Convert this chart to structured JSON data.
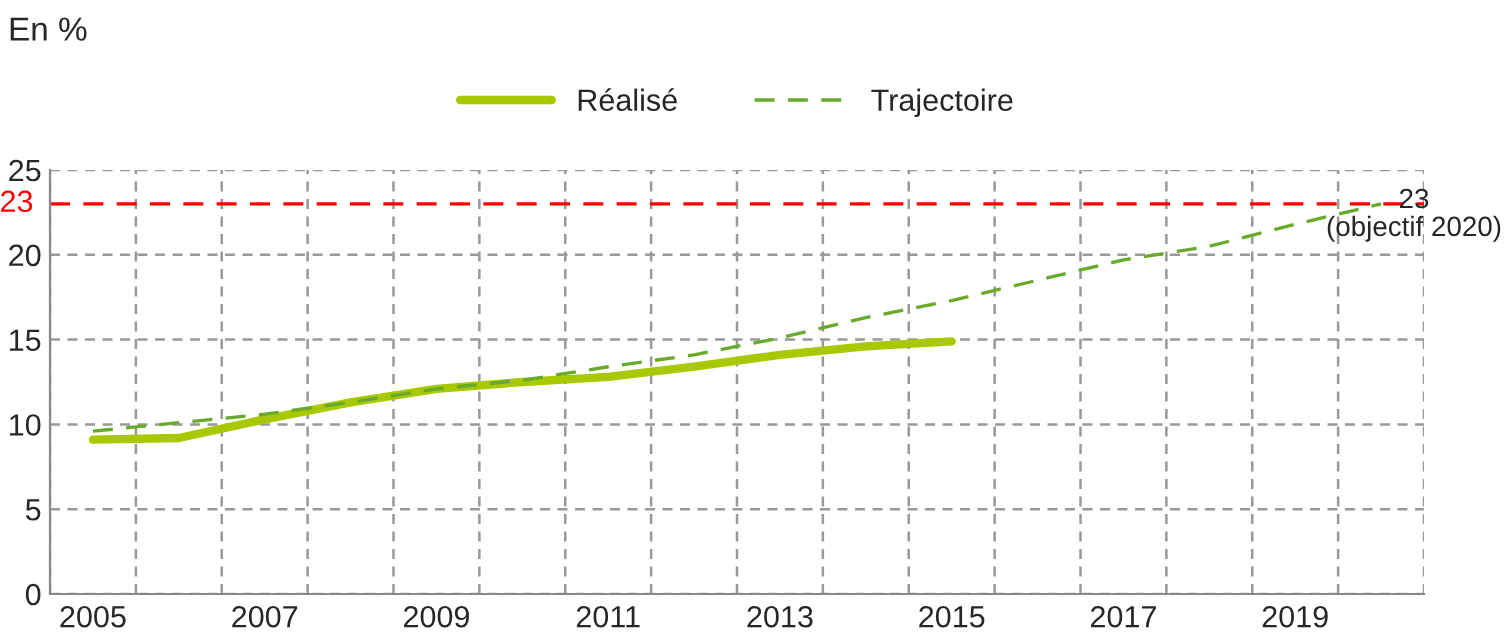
{
  "chart_data": {
    "type": "line",
    "ylabel": "En %",
    "categories": [
      "2005",
      null,
      "2007",
      null,
      "2009",
      null,
      "2011",
      null,
      "2013",
      null,
      "2015",
      null,
      "2017",
      null,
      "2019",
      null
    ],
    "series": [
      {
        "name": "Réalisé",
        "color": "#a8c800",
        "line_style": "solid",
        "values": [
          9.1,
          9.2,
          10.3,
          11.3,
          12.1,
          12.5,
          12.8,
          13.4,
          14.1,
          14.6,
          14.9,
          null,
          null,
          null,
          null,
          null
        ]
      },
      {
        "name": "Trajectoire",
        "color": "#6aaa2a",
        "line_style": "dashed",
        "values": [
          9.6,
          10.1,
          10.6,
          11.3,
          12.1,
          12.6,
          13.4,
          14.1,
          15.1,
          16.3,
          17.3,
          18.5,
          19.7,
          20.5,
          21.8,
          23
        ]
      }
    ],
    "ylim": [
      0,
      25
    ],
    "yticks": [
      0,
      5,
      10,
      15,
      20,
      25
    ],
    "ref_lines": [
      {
        "axis": "y",
        "value": 23,
        "label": "23",
        "color": "#ff0000",
        "line_style": "dashed"
      }
    ],
    "annotations": [
      "23\n(objectif 2020)"
    ],
    "grid": true,
    "legend": "top",
    "marker": "none"
  }
}
